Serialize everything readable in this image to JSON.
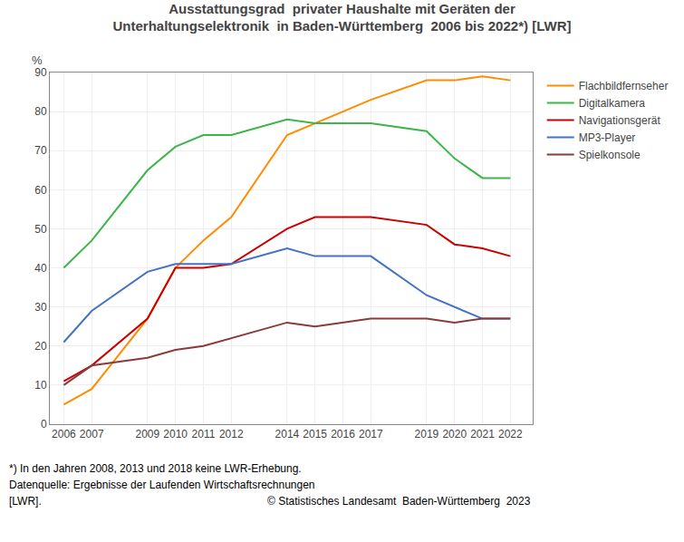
{
  "chart_data": {
    "type": "line",
    "title": "Ausstattungsgrad  privater Haushalte mit Geräten der\nUnterhaltungselektronik  in Baden-Württemberg  2006 bis 2022*) [LWR]",
    "ylabel": "%",
    "annotations": [
      "*) In den Jahren 2008, 2013 und 2018 keine LWR-Erhebung.",
      "Datenquelle: Ergebnisse der Laufenden Wirtschaftsrechnungen",
      "[LWR].",
      "© Statistisches Landesamt  Baden-Württemberg  2023"
    ],
    "x": [
      2006,
      2007,
      2009,
      2010,
      2011,
      2012,
      2014,
      2015,
      2016,
      2017,
      2019,
      2020,
      2021,
      2022
    ],
    "series": [
      {
        "name": "Flachbildfernseher",
        "color": "#FF8C00",
        "values": [
          5,
          9,
          27,
          40,
          47,
          53,
          74,
          77,
          80,
          83,
          88,
          88,
          89,
          88
        ]
      },
      {
        "name": "Digitalkamera",
        "color": "#3CB54A",
        "values": [
          40,
          47,
          65,
          71,
          74,
          74,
          78,
          77,
          77,
          77,
          75,
          68,
          63,
          63
        ]
      },
      {
        "name": "Navigationsgerät",
        "color": "#CC0000",
        "values": [
          11,
          15,
          27,
          40,
          40,
          41,
          50,
          53,
          53,
          53,
          51,
          46,
          45,
          43
        ]
      },
      {
        "name": "MP3-Player",
        "color": "#4472C4",
        "values": [
          21,
          29,
          39,
          41,
          41,
          41,
          45,
          43,
          43,
          43,
          33,
          30,
          27,
          27
        ]
      },
      {
        "name": "Spielkonsole",
        "color": "#8B3A3A",
        "values": [
          10,
          15,
          17,
          19,
          20,
          22,
          26,
          25,
          26,
          27,
          27,
          26,
          27,
          27
        ]
      }
    ],
    "xlim": [
      2005.5,
      2022.8
    ],
    "xticks": [
      2006,
      2007,
      2009,
      2010,
      2011,
      2012,
      2014,
      2015,
      2016,
      2017,
      2019,
      2020,
      2021,
      2022
    ],
    "ylim": [
      0,
      90
    ],
    "yticks": [
      0,
      10,
      20,
      30,
      40,
      50,
      60,
      70,
      80,
      90
    ],
    "grid": true,
    "legend": "right"
  }
}
